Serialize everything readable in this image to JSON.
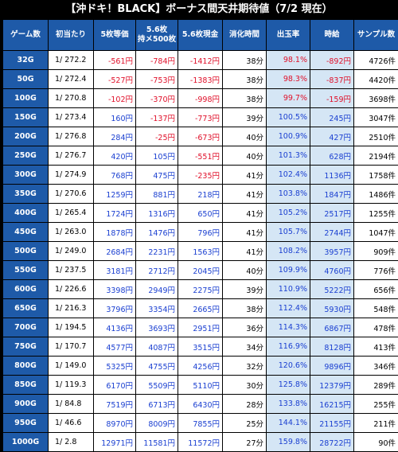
{
  "title": "【沖ドキ！BLACK】ボーナス間天井期待値（7/2 現在）",
  "headers": {
    "game": "ゲーム数",
    "prob": "初当たり",
    "ev5": "5枚等価",
    "ev56_line1": "5.6枚",
    "ev56_line2": "持メ500枚",
    "ev56cash": "5.6枚現金",
    "time": "消化時間",
    "payout": "出玉率",
    "hourly": "時給",
    "samples": "サンプル数"
  },
  "colors": {
    "header_bg": "#1e5aa8",
    "light_blue": "#d5e6f5",
    "positive": "#1a3fd1",
    "negative": "#e0102a"
  },
  "rows": [
    {
      "game": "32G",
      "prob": "1/ 272.2",
      "ev5": "-561円",
      "ev56": "-784円",
      "ev56cash": "-1412円",
      "time": "38分",
      "payout": "98.1%",
      "hourly": "-892円",
      "samples": "4726件"
    },
    {
      "game": "50G",
      "prob": "1/ 272.4",
      "ev5": "-527円",
      "ev56": "-753円",
      "ev56cash": "-1383円",
      "time": "38分",
      "payout": "98.3%",
      "hourly": "-837円",
      "samples": "4420件"
    },
    {
      "game": "100G",
      "prob": "1/ 270.8",
      "ev5": "-102円",
      "ev56": "-370円",
      "ev56cash": "-998円",
      "time": "38分",
      "payout": "99.7%",
      "hourly": "-159円",
      "samples": "3698件"
    },
    {
      "game": "150G",
      "prob": "1/ 273.4",
      "ev5": "160円",
      "ev56": "-137円",
      "ev56cash": "-773円",
      "time": "39分",
      "payout": "100.5%",
      "hourly": "245円",
      "samples": "3047件"
    },
    {
      "game": "200G",
      "prob": "1/ 276.8",
      "ev5": "284円",
      "ev56": "-25円",
      "ev56cash": "-673円",
      "time": "40分",
      "payout": "100.9%",
      "hourly": "427円",
      "samples": "2510件"
    },
    {
      "game": "250G",
      "prob": "1/ 276.7",
      "ev5": "420円",
      "ev56": "105円",
      "ev56cash": "-551円",
      "time": "40分",
      "payout": "101.3%",
      "hourly": "628円",
      "samples": "2194件"
    },
    {
      "game": "300G",
      "prob": "1/ 274.9",
      "ev5": "768円",
      "ev56": "475円",
      "ev56cash": "-235円",
      "time": "41分",
      "payout": "102.4%",
      "hourly": "1136円",
      "samples": "1758件"
    },
    {
      "game": "350G",
      "prob": "1/ 270.6",
      "ev5": "1259円",
      "ev56": "881円",
      "ev56cash": "218円",
      "time": "41分",
      "payout": "103.8%",
      "hourly": "1847円",
      "samples": "1486件"
    },
    {
      "game": "400G",
      "prob": "1/ 265.4",
      "ev5": "1724円",
      "ev56": "1316円",
      "ev56cash": "650円",
      "time": "41分",
      "payout": "105.2%",
      "hourly": "2517円",
      "samples": "1255件"
    },
    {
      "game": "450G",
      "prob": "1/ 263.0",
      "ev5": "1878円",
      "ev56": "1476円",
      "ev56cash": "796円",
      "time": "41分",
      "payout": "105.7%",
      "hourly": "2744円",
      "samples": "1047件"
    },
    {
      "game": "500G",
      "prob": "1/ 249.0",
      "ev5": "2684円",
      "ev56": "2231円",
      "ev56cash": "1563円",
      "time": "41分",
      "payout": "108.2%",
      "hourly": "3957円",
      "samples": "909件"
    },
    {
      "game": "550G",
      "prob": "1/ 237.5",
      "ev5": "3181円",
      "ev56": "2712円",
      "ev56cash": "2045円",
      "time": "40分",
      "payout": "109.9%",
      "hourly": "4760円",
      "samples": "776件"
    },
    {
      "game": "600G",
      "prob": "1/ 226.6",
      "ev5": "3398円",
      "ev56": "2949円",
      "ev56cash": "2275円",
      "time": "39分",
      "payout": "110.9%",
      "hourly": "5222円",
      "samples": "656件"
    },
    {
      "game": "650G",
      "prob": "1/ 216.3",
      "ev5": "3796円",
      "ev56": "3354円",
      "ev56cash": "2665円",
      "time": "38分",
      "payout": "112.4%",
      "hourly": "5930円",
      "samples": "548件"
    },
    {
      "game": "700G",
      "prob": "1/ 194.5",
      "ev5": "4136円",
      "ev56": "3693円",
      "ev56cash": "2951円",
      "time": "36分",
      "payout": "114.3%",
      "hourly": "6867円",
      "samples": "478件"
    },
    {
      "game": "750G",
      "prob": "1/ 170.7",
      "ev5": "4577円",
      "ev56": "4087円",
      "ev56cash": "3515円",
      "time": "34分",
      "payout": "116.9%",
      "hourly": "8128円",
      "samples": "413件"
    },
    {
      "game": "800G",
      "prob": "1/ 149.0",
      "ev5": "5325円",
      "ev56": "4755円",
      "ev56cash": "4256円",
      "time": "32分",
      "payout": "120.6%",
      "hourly": "9896円",
      "samples": "346件"
    },
    {
      "game": "850G",
      "prob": "1/ 119.3",
      "ev5": "6170円",
      "ev56": "5509円",
      "ev56cash": "5110円",
      "time": "30分",
      "payout": "125.8%",
      "hourly": "12379円",
      "samples": "289件"
    },
    {
      "game": "900G",
      "prob": "1/ 84.8",
      "ev5": "7519円",
      "ev56": "6713円",
      "ev56cash": "6430円",
      "time": "28分",
      "payout": "133.8%",
      "hourly": "16215円",
      "samples": "255件"
    },
    {
      "game": "950G",
      "prob": "1/ 46.6",
      "ev5": "8970円",
      "ev56": "8009円",
      "ev56cash": "7855円",
      "time": "25分",
      "payout": "144.1%",
      "hourly": "21155円",
      "samples": "211件"
    },
    {
      "game": "1000G",
      "prob": "1/ 2.8",
      "ev5": "12971円",
      "ev56": "11581円",
      "ev56cash": "11572円",
      "time": "27分",
      "payout": "159.8%",
      "hourly": "28722円",
      "samples": "90件"
    }
  ]
}
